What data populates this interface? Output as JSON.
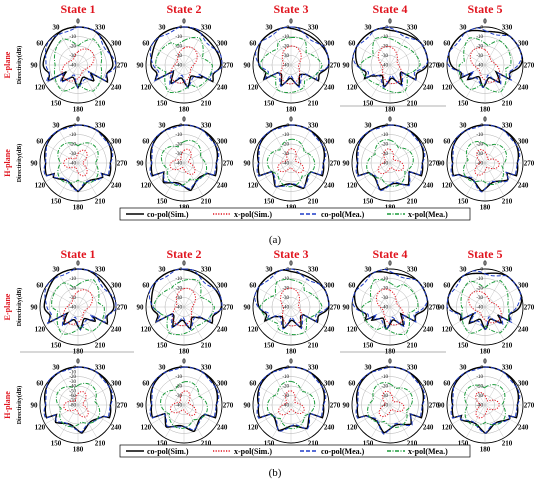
{
  "chart_data": {
    "type": "polar",
    "panels": [
      "(a)",
      "(b)"
    ],
    "state_titles": [
      "State 1",
      "State 2",
      "State 3",
      "State 4",
      "State 5"
    ],
    "row_labels": [
      "E-plane",
      "H-plane"
    ],
    "r_axis_label": "Directivity(dB)",
    "angle_ticks": [
      "0",
      "30",
      "60",
      "90",
      "120",
      "150",
      "180",
      "210",
      "240",
      "270",
      "300",
      "330"
    ],
    "r_ticks": [
      "0",
      "-10",
      "-20",
      "-30",
      "-40"
    ],
    "r_ticks_b_h1": [
      "0",
      "-10",
      "-20",
      "-30",
      "-40",
      "-50",
      "-60",
      "-70",
      "-80"
    ],
    "rlim": [
      -40,
      0
    ],
    "legend": [
      "co-pol(Sim.)",
      "x-pol(Sim.)",
      "co-pol(Mea.)",
      "x-pol(Mea.)"
    ],
    "series_colors": [
      "#000000",
      "#e0141e",
      "#1e3cc8",
      "#1a9a3a"
    ],
    "series_styles": [
      "solid",
      "dotted",
      "dashed",
      "dashdot"
    ]
  }
}
